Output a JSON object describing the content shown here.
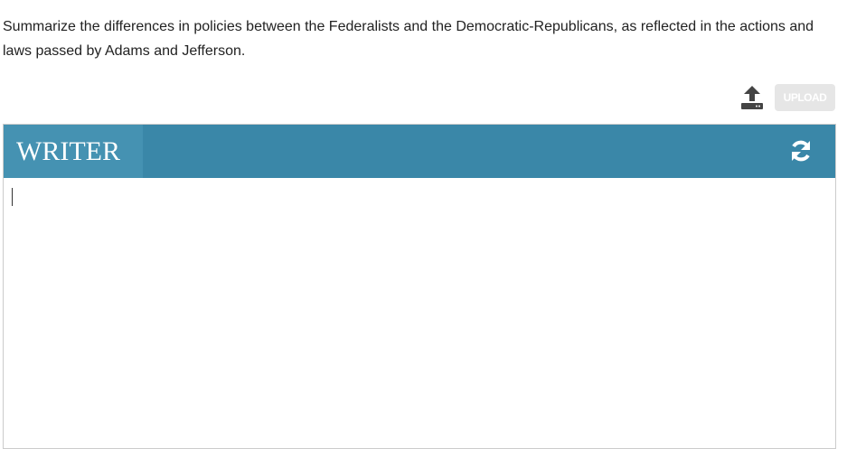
{
  "question": "Summarize the differences in policies between the Federalists and the Democratic-Republicans, as reflected in the actions and laws passed by Adams and Jefferson.",
  "upload_button": "UPLOAD",
  "writer": {
    "title": "WRITER"
  }
}
